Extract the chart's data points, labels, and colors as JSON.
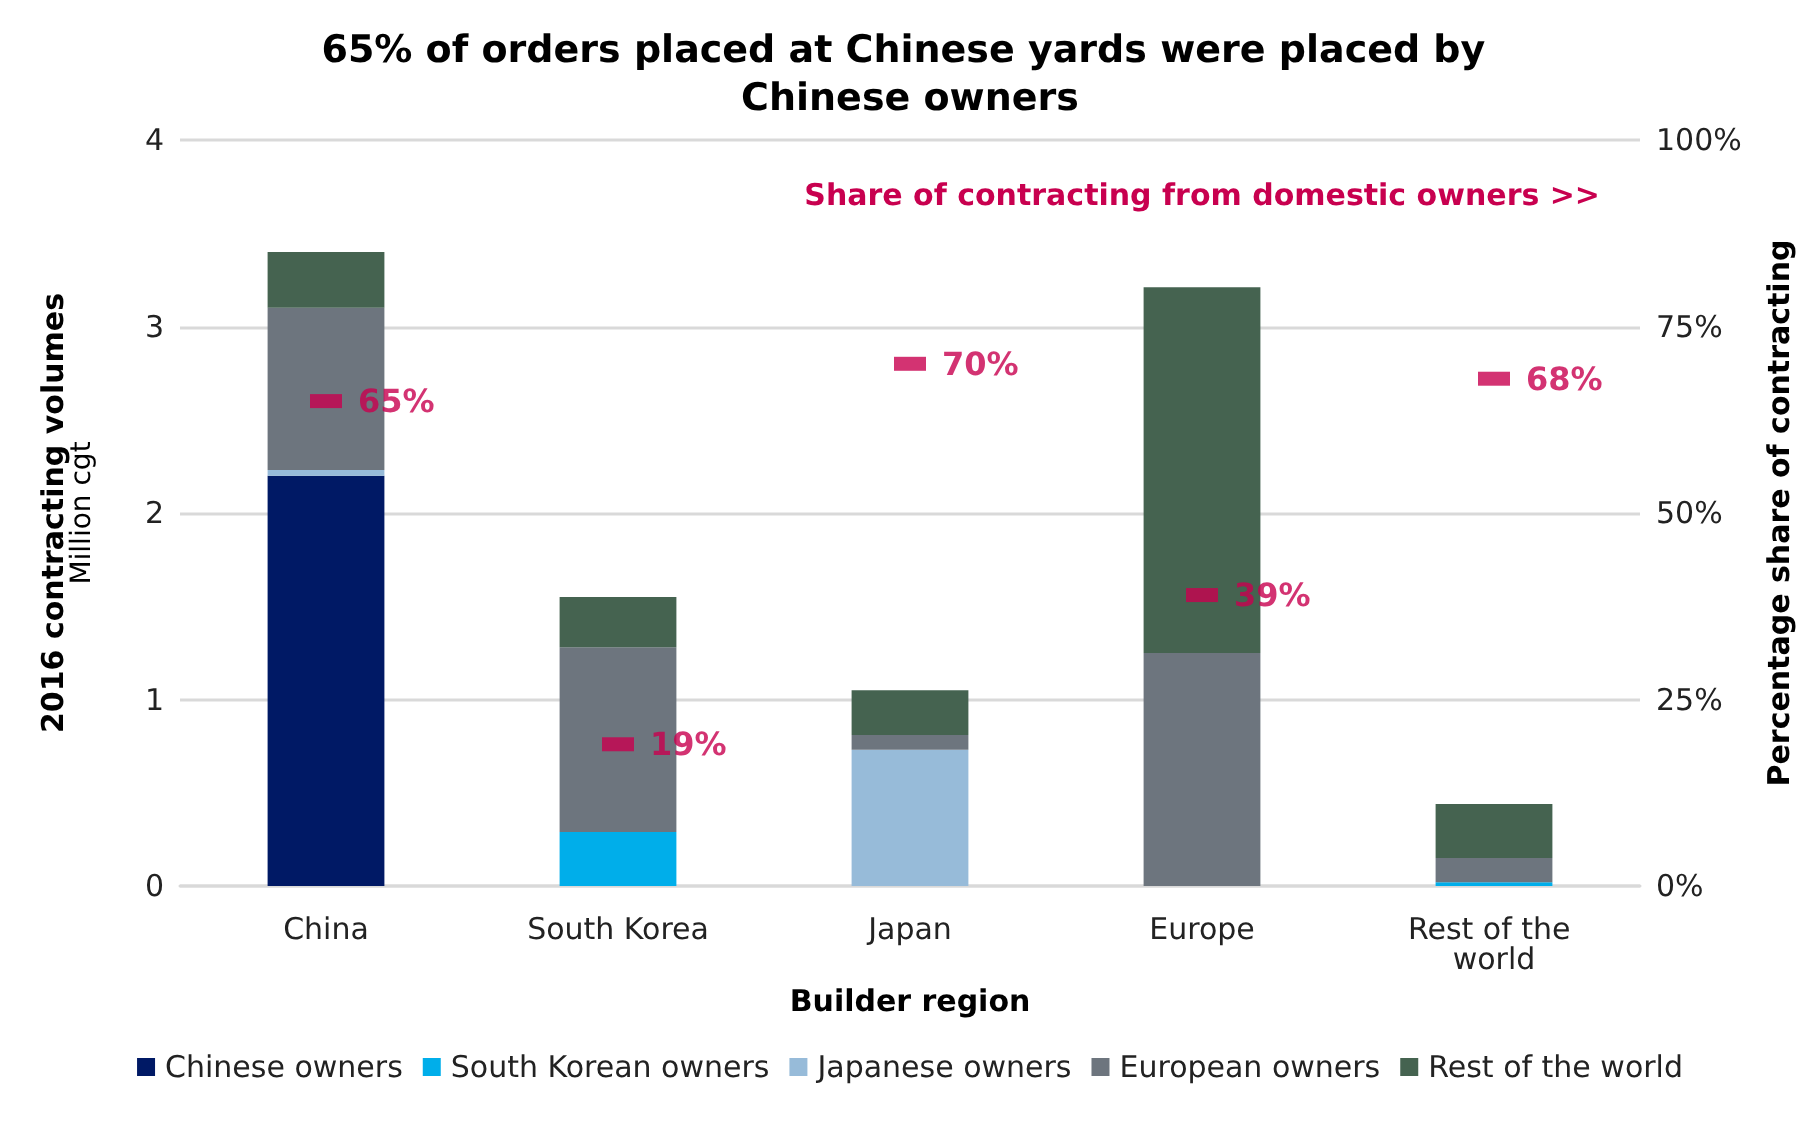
{
  "chart_data": {
    "type": "bar",
    "title": "65% of orders placed at Chinese yards were placed by Chinese owners",
    "xlabel": "Builder region",
    "ylabel": "2016 contracting volumes\nMillion cgt",
    "y2label": "Percentage share of contracting",
    "categories": [
      "China",
      "South Korea",
      "Japan",
      "Europe",
      "Rest of the world"
    ],
    "stacked": true,
    "series": [
      {
        "name": "Chinese owners",
        "color": "#001965",
        "values": [
          2.2,
          0,
          0,
          0,
          0
        ]
      },
      {
        "name": "South Korean owners",
        "color": "#00aeea",
        "values": [
          0,
          0.29,
          0,
          0,
          0.02
        ]
      },
      {
        "name": "Japanese owners",
        "color": "#97bbd9",
        "values": [
          0.03,
          0,
          0.73,
          0,
          0
        ]
      },
      {
        "name": "European owners",
        "color": "#6d757e",
        "values": [
          0.87,
          0.99,
          0.08,
          1.25,
          0.13
        ]
      },
      {
        "name": "Rest of the world",
        "color": "#456350",
        "values": [
          0.3,
          0.27,
          0.24,
          1.96,
          0.29
        ]
      },
      {
        "type": "scatter",
        "axis": "y2",
        "color": "#c8004f",
        "x": [
          "China",
          "South Korea",
          "Japan",
          "Europe",
          "Rest of the world"
        ],
        "values": [
          65,
          19,
          70,
          39,
          68
        ],
        "value_labels": [
          "65%",
          "19%",
          "70%",
          "39%",
          "68%"
        ]
      }
    ],
    "ylim": [
      0,
      4
    ],
    "yticks": [
      0,
      1,
      2,
      3,
      4
    ],
    "y2lim": [
      0,
      100
    ],
    "y2ticks": [
      {
        "value": 0,
        "label": "0%"
      },
      {
        "value": 25,
        "label": "25%"
      },
      {
        "value": 50,
        "label": "50%"
      },
      {
        "value": 75,
        "label": "75%"
      },
      {
        "value": 100,
        "label": "100%"
      }
    ],
    "annotations": [
      "Share of contracting from domestic owners >>"
    ],
    "grid": "y",
    "legend": "bottom"
  }
}
